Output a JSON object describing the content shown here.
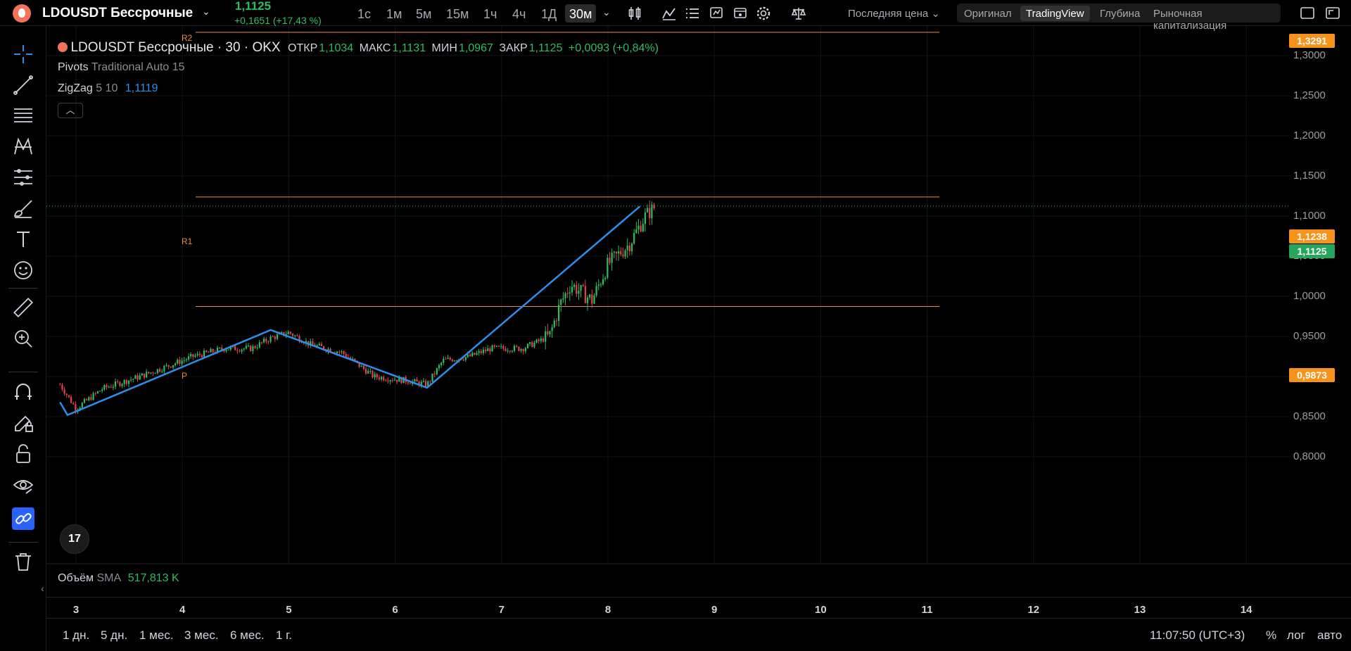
{
  "header": {
    "symbol": "LDOUSDT Бессрочные",
    "last_price": "1,1125",
    "change": "+0,1651 (+17,43 %)",
    "timeframes": [
      "1с",
      "1м",
      "5м",
      "15м",
      "1ч",
      "4ч",
      "1Д",
      "30м"
    ],
    "active_timeframe": "30м",
    "price_type": "Последняя цена",
    "view_tabs": [
      "Оригинал",
      "TradingView",
      "Глубина",
      "Рыночная капитализация"
    ],
    "active_view": "TradingView"
  },
  "legend": {
    "title": "LDOUSDT Бессрочные · 30 · OKX",
    "open_label": "ОТКР",
    "open": "1,1034",
    "high_label": "МАКС",
    "high": "1,1131",
    "low_label": "МИН",
    "low": "1,0967",
    "close_label": "ЗАКР",
    "close": "1,1125",
    "change": "+0,0093 (+0,84%)",
    "pivots_name": "Pivots",
    "pivots_params": "Traditional Auto 15",
    "zigzag_name": "ZigZag",
    "zigzag_params": "5 10",
    "zigzag_value": "1,1119"
  },
  "pivots": [
    {
      "label": "R2",
      "value": 1.3291,
      "badge": "1,3291"
    },
    {
      "label": "R1",
      "value": 1.1238,
      "badge": "1,1238"
    },
    {
      "label": "P",
      "value": 0.9873,
      "badge": "0,9873"
    }
  ],
  "current_price": {
    "value": 1.1125,
    "badge": "1,1125"
  },
  "price_axis": [
    "1,3000",
    "1,2500",
    "1,2000",
    "1,1500",
    "1,1000",
    "1,0500",
    "1,0000",
    "0,9500",
    "0,9000",
    "0,8500",
    "0,8000"
  ],
  "time_axis": [
    "3",
    "4",
    "5",
    "6",
    "7",
    "8",
    "9",
    "10",
    "11",
    "12",
    "13",
    "14"
  ],
  "volume": {
    "name": "Объём",
    "ma": "SMA",
    "value": "517,813 K"
  },
  "ranges": [
    "1 дн.",
    "5 дн.",
    "1 мес.",
    "3 мес.",
    "6 мес.",
    "1 г."
  ],
  "clock": "11:07:50 (UTC+3)",
  "bottom_options": [
    "%",
    "лог",
    "авто"
  ],
  "tv_logo": "17",
  "colors": {
    "up": "#2ebd5f",
    "down": "#e5424d",
    "zigzag": "#2c8fee",
    "pivot": "#f08a3c",
    "current": "#2ebd5f"
  },
  "chart_data": {
    "type": "candlestick",
    "price_range": [
      0.8,
      1.35
    ],
    "zigzag": [
      {
        "day": 2.85,
        "price": 0.868
      },
      {
        "day": 2.92,
        "price": 0.852
      },
      {
        "day": 4.83,
        "price": 0.958
      },
      {
        "day": 6.3,
        "price": 0.886
      },
      {
        "day": 8.3,
        "price": 1.112
      }
    ],
    "close_path": [
      {
        "day": 2.85,
        "price": 0.89
      },
      {
        "day": 3.0,
        "price": 0.86
      },
      {
        "day": 3.25,
        "price": 0.885
      },
      {
        "day": 3.6,
        "price": 0.9
      },
      {
        "day": 4.1,
        "price": 0.925
      },
      {
        "day": 4.4,
        "price": 0.935
      },
      {
        "day": 4.65,
        "price": 0.935
      },
      {
        "day": 4.83,
        "price": 0.948
      },
      {
        "day": 5.0,
        "price": 0.955
      },
      {
        "day": 5.2,
        "price": 0.94
      },
      {
        "day": 5.5,
        "price": 0.93
      },
      {
        "day": 5.8,
        "price": 0.9
      },
      {
        "day": 6.1,
        "price": 0.895
      },
      {
        "day": 6.3,
        "price": 0.89
      },
      {
        "day": 6.45,
        "price": 0.92
      },
      {
        "day": 6.7,
        "price": 0.925
      },
      {
        "day": 6.9,
        "price": 0.935
      },
      {
        "day": 7.2,
        "price": 0.935
      },
      {
        "day": 7.45,
        "price": 0.95
      },
      {
        "day": 7.55,
        "price": 0.99
      },
      {
        "day": 7.65,
        "price": 1.015
      },
      {
        "day": 7.85,
        "price": 0.995
      },
      {
        "day": 8.0,
        "price": 1.04
      },
      {
        "day": 8.2,
        "price": 1.065
      },
      {
        "day": 8.35,
        "price": 1.1
      },
      {
        "day": 8.45,
        "price": 1.1125
      }
    ]
  }
}
